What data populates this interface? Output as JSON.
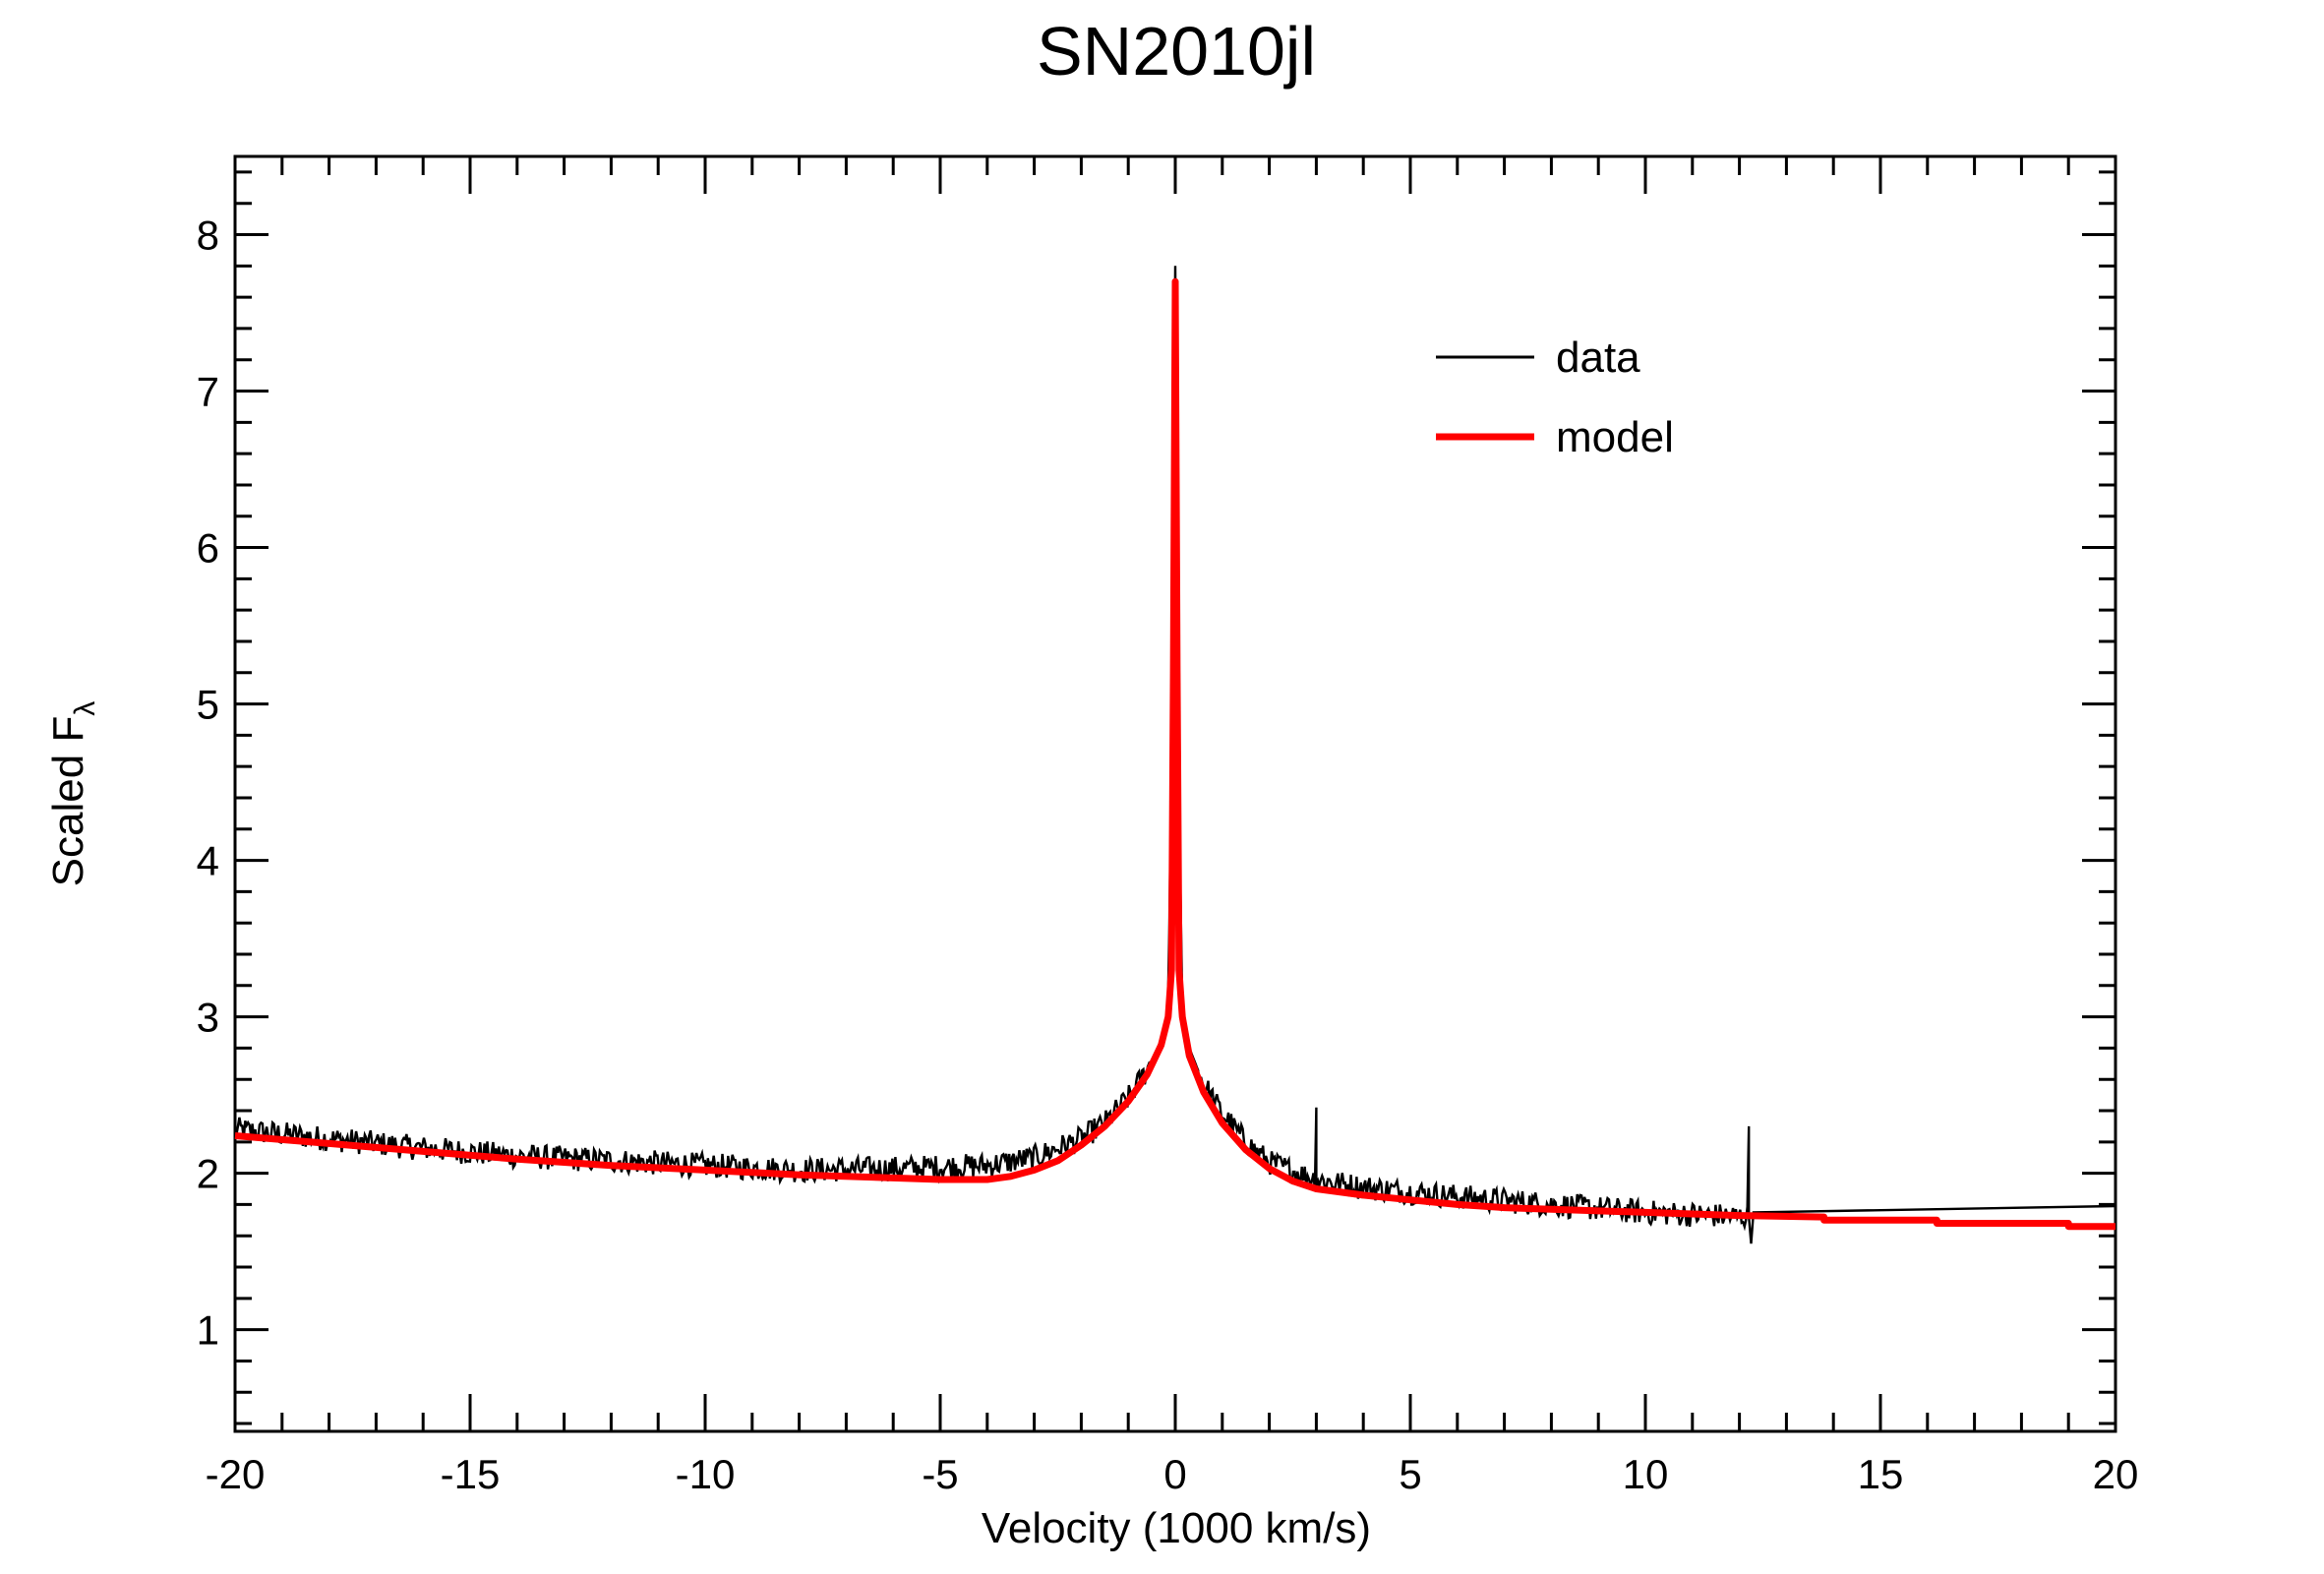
{
  "chart_data": {
    "type": "line",
    "title": "SN2010jl",
    "xlabel": "Velocity (1000 km/s)",
    "ylabel_main": "Scaled F",
    "ylabel_sub": "λ",
    "xlim": [
      -20,
      20
    ],
    "ylim": [
      0.35,
      8.5
    ],
    "x_ticks": [
      -20,
      -15,
      -10,
      -5,
      0,
      5,
      10,
      15,
      20
    ],
    "x_tick_labels": [
      "-20",
      "-15",
      "-10",
      "-5",
      "0",
      "5",
      "10",
      "15",
      "20"
    ],
    "y_ticks": [
      1,
      2,
      3,
      4,
      5,
      6,
      7,
      8
    ],
    "y_tick_labels": [
      "1",
      "2",
      "3",
      "4",
      "5",
      "6",
      "7",
      "8"
    ],
    "grid": false,
    "legend_position": "top-right",
    "series": [
      {
        "name": "data",
        "color": "#000000",
        "x": [
          -20,
          -18,
          -16,
          -14,
          -12,
          -10,
          -8,
          -6,
          -4,
          -3,
          -2,
          -1.5,
          -1,
          -0.6,
          -0.3,
          -0.15,
          -0.08,
          0,
          0.08,
          0.15,
          0.3,
          0.6,
          1,
          1.5,
          2,
          3,
          4,
          6,
          8,
          10,
          12.2,
          12.3,
          20
        ],
        "y": [
          2.28,
          2.22,
          2.16,
          2.11,
          2.08,
          2.05,
          2.02,
          2.03,
          2.05,
          2.1,
          2.22,
          2.32,
          2.48,
          2.66,
          2.85,
          3.05,
          4.6,
          7.8,
          4.4,
          3.05,
          2.8,
          2.57,
          2.38,
          2.2,
          2.07,
          1.96,
          1.91,
          1.85,
          1.8,
          1.75,
          1.72,
          1.75,
          1.79
        ],
        "noise_amplitude": 0.08,
        "noisy_range": [
          -20,
          12.2
        ]
      },
      {
        "name": "model",
        "color": "#ff0000",
        "x": [
          -20,
          -18,
          -16,
          -14,
          -12,
          -10,
          -8,
          -6,
          -5,
          -4,
          -3.5,
          -3,
          -2.5,
          -2,
          -1.5,
          -1,
          -0.6,
          -0.3,
          -0.15,
          -0.08,
          -0.04,
          0,
          0.04,
          0.08,
          0.15,
          0.3,
          0.6,
          1,
          1.5,
          2,
          2.5,
          3,
          4,
          5,
          6,
          7,
          8,
          10,
          12,
          13.8,
          13.8,
          16.2,
          16.2,
          19,
          19,
          20
        ],
        "y": [
          2.24,
          2.19,
          2.14,
          2.09,
          2.05,
          2.02,
          1.99,
          1.97,
          1.96,
          1.96,
          1.98,
          2.02,
          2.08,
          2.18,
          2.3,
          2.46,
          2.63,
          2.82,
          3.0,
          3.3,
          5.2,
          7.7,
          5.2,
          3.3,
          3.0,
          2.75,
          2.52,
          2.32,
          2.15,
          2.03,
          1.95,
          1.9,
          1.86,
          1.83,
          1.8,
          1.78,
          1.77,
          1.75,
          1.73,
          1.72,
          1.7,
          1.7,
          1.68,
          1.68,
          1.66,
          1.66
        ]
      }
    ]
  }
}
